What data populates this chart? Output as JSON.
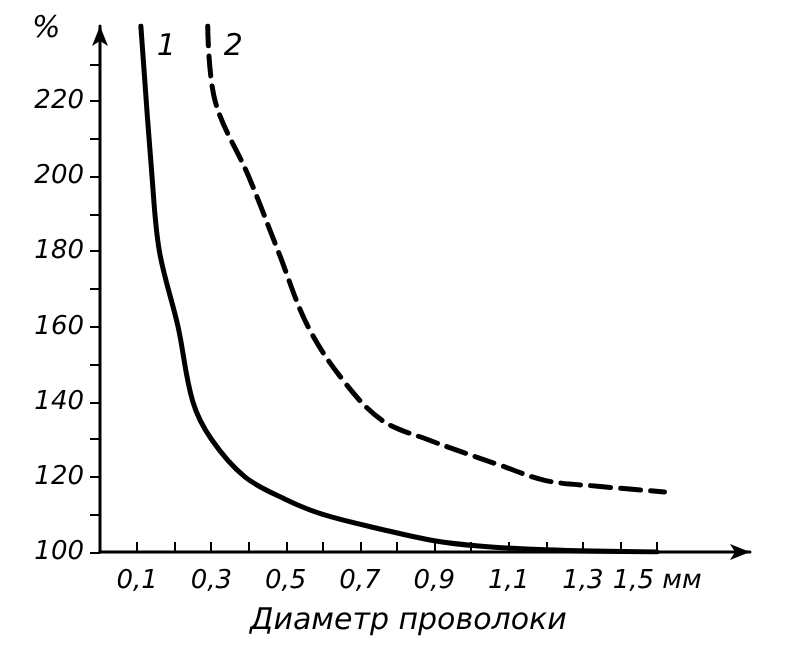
{
  "chart_data": {
    "type": "line",
    "xlabel": "Диаметр проволоки",
    "ylabel": "%",
    "xlim": [
      0,
      1.75
    ],
    "xticks": [
      {
        "value": 0.1,
        "label": "0,1"
      },
      {
        "value": 0.2,
        "label": null
      },
      {
        "value": 0.3,
        "label": "0,3"
      },
      {
        "value": 0.4,
        "label": null
      },
      {
        "value": 0.5,
        "label": "0,5"
      },
      {
        "value": 0.6,
        "label": null
      },
      {
        "value": 0.7,
        "label": "0,7"
      },
      {
        "value": 0.8,
        "label": null
      },
      {
        "value": 0.9,
        "label": "0,9"
      },
      {
        "value": 1.0,
        "label": null
      },
      {
        "value": 1.1,
        "label": "1,1"
      },
      {
        "value": 1.2,
        "label": null
      },
      {
        "value": 1.3,
        "label": "1,3"
      },
      {
        "value": 1.4,
        "label": null
      },
      {
        "value": 1.5,
        "label": "1,5 мм"
      }
    ],
    "ylim": [
      100,
      240
    ],
    "yticks": [
      100,
      {
        "value": 110,
        "label": null
      },
      120,
      {
        "value": 130,
        "label": null
      },
      140,
      {
        "value": 150,
        "label": null
      },
      160,
      {
        "value": 170,
        "label": null
      },
      180,
      {
        "value": 190,
        "label": null
      },
      200,
      {
        "value": 210,
        "label": null
      },
      220,
      {
        "value": 230,
        "label": null
      }
    ],
    "grid": false,
    "marker": "none",
    "series": [
      {
        "color": "#000000",
        "line_style": "solid",
        "x": [
          0.11,
          0.14,
          0.16,
          0.21,
          0.25,
          0.3,
          0.39,
          0.5,
          0.6,
          0.76,
          0.9,
          1.02,
          1.2,
          1.5
        ],
        "values": [
          240,
          200,
          180,
          160,
          140,
          130,
          120,
          114,
          110,
          106,
          103,
          101.6,
          100.6,
          100
        ]
      },
      {
        "color": "#000000",
        "line_style": "dashed",
        "x": [
          0.29,
          0.31,
          0.4,
          0.48,
          0.56,
          0.66,
          0.76,
          0.88,
          1.08,
          1.2,
          1.34,
          1.52
        ],
        "values": [
          240,
          220,
          200,
          180,
          160,
          145,
          135,
          130,
          123,
          119,
          117.5,
          116
        ]
      }
    ],
    "annotations": [
      "1",
      "2"
    ]
  }
}
